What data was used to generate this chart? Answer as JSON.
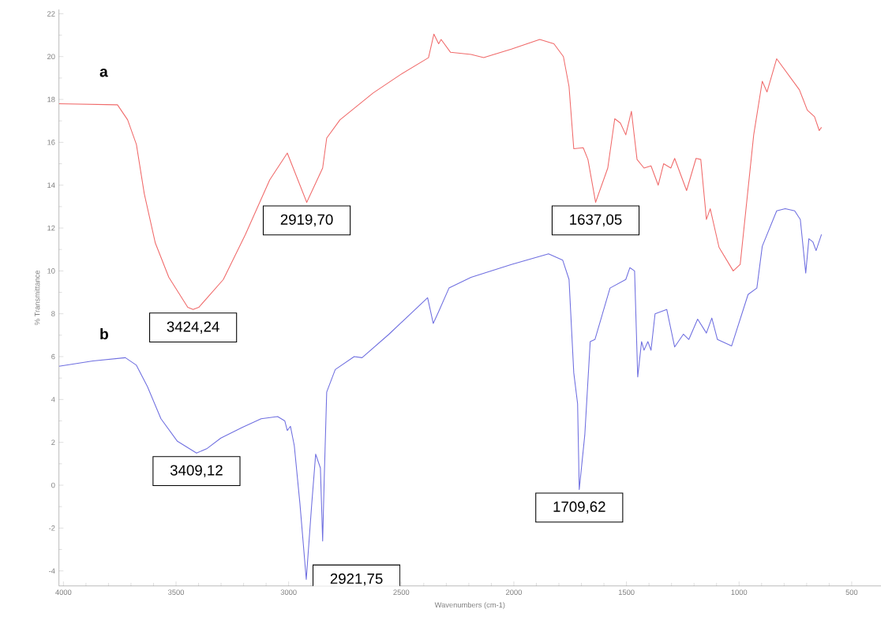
{
  "chart_data": {
    "type": "line",
    "xlabel": "Wavenumbers (cm-1)",
    "ylabel": "% Transmittance",
    "xlim": [
      4020,
      370
    ],
    "ylim": [
      -4.7,
      22.2
    ],
    "xticks": [
      4000,
      3500,
      3000,
      2500,
      2000,
      1500,
      1000,
      500
    ],
    "yticks": [
      -4,
      -2,
      0,
      2,
      4,
      6,
      8,
      10,
      12,
      14,
      16,
      18,
      20,
      22
    ],
    "grid": false,
    "legend": false,
    "marker": "none",
    "line_style": "solid",
    "series": [
      {
        "name": "a",
        "color": "#f06a6a",
        "x": [
          4020,
          3760,
          3715,
          3676,
          3641,
          3592,
          3532,
          3448,
          3424.24,
          3399,
          3290,
          3192,
          3084,
          3006,
          2919.7,
          2849,
          2831,
          2772,
          2625,
          2505,
          2379,
          2355,
          2334,
          2323,
          2281,
          2190,
          2134,
          2011,
          1885,
          1822,
          1780,
          1755,
          1734,
          1692,
          1671,
          1637.05,
          1583,
          1552,
          1527,
          1503,
          1478,
          1453,
          1422,
          1391,
          1359,
          1335,
          1303,
          1286,
          1233,
          1191,
          1170,
          1145,
          1128,
          1089,
          1026,
          995,
          935,
          897,
          876,
          833,
          732,
          697,
          665,
          644,
          634
        ],
        "values": [
          17.8,
          17.75,
          17.05,
          15.9,
          13.6,
          11.3,
          9.7,
          8.3,
          8.2,
          8.3,
          9.6,
          11.7,
          14.25,
          15.5,
          13.2,
          14.8,
          16.2,
          17.05,
          18.3,
          19.15,
          19.95,
          21.05,
          20.6,
          20.8,
          20.2,
          20.1,
          19.95,
          20.35,
          20.8,
          20.6,
          20.0,
          18.6,
          15.7,
          15.75,
          15.2,
          13.2,
          14.8,
          17.1,
          16.9,
          16.35,
          17.45,
          15.2,
          14.8,
          14.9,
          14.0,
          15.0,
          14.8,
          15.25,
          13.75,
          15.25,
          15.2,
          12.4,
          12.9,
          11.1,
          10.0,
          10.3,
          16.35,
          18.85,
          18.35,
          19.9,
          18.45,
          17.5,
          17.2,
          16.55,
          16.7
        ]
      },
      {
        "name": "b",
        "color": "#6f6fe0",
        "x": [
          4020,
          3869,
          3725,
          3676,
          3627,
          3567,
          3494,
          3409.12,
          3364,
          3301,
          3206,
          3122,
          3049,
          3017,
          3006,
          2992,
          2975,
          2950,
          2921.75,
          2898,
          2880,
          2859,
          2849,
          2842,
          2831,
          2793,
          2709,
          2674,
          2554,
          2383,
          2358,
          2334,
          2288,
          2190,
          2011,
          1846,
          1783,
          1755,
          1734,
          1717,
          1709.62,
          1685,
          1661,
          1640,
          1573,
          1503,
          1485,
          1464,
          1450,
          1433,
          1422,
          1405,
          1391,
          1373,
          1321,
          1286,
          1247,
          1223,
          1184,
          1145,
          1121,
          1096,
          1033,
          960,
          921,
          897,
          833,
          795,
          753,
          728,
          704,
          690,
          672,
          658,
          634
        ],
        "values": [
          5.55,
          5.8,
          5.95,
          5.6,
          4.6,
          3.1,
          2.05,
          1.5,
          1.7,
          2.2,
          2.7,
          3.1,
          3.2,
          3.0,
          2.55,
          2.75,
          1.85,
          -0.85,
          -4.4,
          -0.95,
          1.45,
          0.8,
          -2.6,
          0.3,
          4.35,
          5.4,
          6.0,
          5.95,
          7.05,
          8.75,
          7.55,
          8.1,
          9.2,
          9.7,
          10.3,
          10.8,
          10.5,
          9.6,
          5.25,
          3.8,
          -0.2,
          2.35,
          6.7,
          6.8,
          9.2,
          9.6,
          10.15,
          10.0,
          5.05,
          6.7,
          6.3,
          6.7,
          6.3,
          8.0,
          8.2,
          6.45,
          7.05,
          6.8,
          7.75,
          7.1,
          7.8,
          6.8,
          6.5,
          8.9,
          9.2,
          11.15,
          12.8,
          12.9,
          12.8,
          12.4,
          9.9,
          11.5,
          11.35,
          10.95,
          11.7
        ]
      }
    ],
    "annotations": [
      {
        "text": "3424,24",
        "x": 3424.24,
        "y": 8.2
      },
      {
        "text": "2919,70",
        "x": 2919.7,
        "y": 13.2
      },
      {
        "text": "1637,05",
        "x": 1637.05,
        "y": 13.2
      },
      {
        "text": "3409,12",
        "x": 3409.12,
        "y": 1.5
      },
      {
        "text": "2921,75",
        "x": 2921.75,
        "y": -4.4
      },
      {
        "text": "1709,62",
        "x": 1709.62,
        "y": -0.2
      }
    ]
  }
}
